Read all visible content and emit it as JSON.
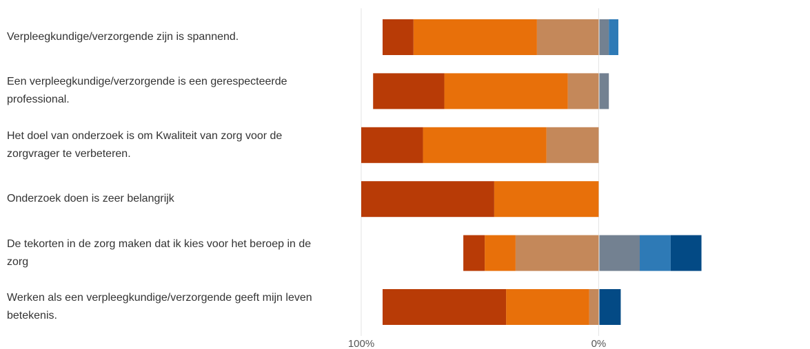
{
  "chart_data": {
    "type": "diverging-bar",
    "categories": [
      "Verpleegkundige/verzorgende zijn is spannend.",
      "Een verpleegkundige/verzorgende is een gerespecteerde professional.",
      "Het doel van onderzoek is om Kwaliteit van zorg voor de zorgvrager te verbeteren.",
      "Onderzoek doen is zeer belangrijk",
      "De tekorten in de zorg maken dat ik kies voor het beroep in de zorg",
      "Werken als een verpleegkundige/verzorgende geeft mijn leven betekenis."
    ],
    "series": [
      {
        "color": "#b83b06",
        "values": [
          -13,
          -30,
          -26,
          -56,
          -9,
          -52
        ]
      },
      {
        "color": "#e8700a",
        "values": [
          -52,
          -52,
          -52,
          -44,
          -13,
          -35
        ]
      },
      {
        "color": "#c4885a",
        "values": [
          -26,
          -13,
          -22,
          0,
          -35,
          -4
        ]
      },
      {
        "color": "#738191",
        "values": [
          4,
          4,
          0,
          0,
          17,
          0
        ]
      },
      {
        "color": "#2e7ab6",
        "values": [
          4,
          0,
          0,
          0,
          13,
          0
        ]
      },
      {
        "color": "#034a85",
        "values": [
          0,
          0,
          0,
          0,
          13,
          9
        ]
      }
    ],
    "xlim": [
      -100,
      89
    ],
    "xticks": [
      {
        "value": -100,
        "label": "100%"
      },
      {
        "value": 0,
        "label": "0%"
      }
    ],
    "grid": true
  }
}
